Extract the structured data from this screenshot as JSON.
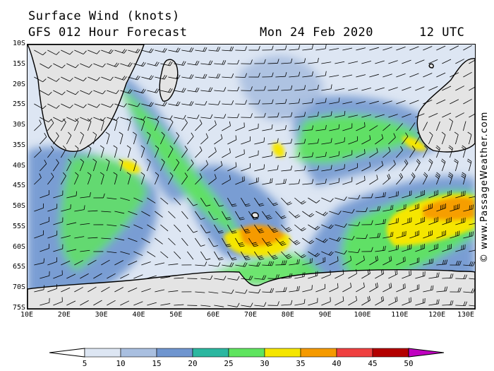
{
  "header": {
    "title": "Surface Wind (knots)",
    "model": "GFS 012 Hour Forecast",
    "date": "Mon 24 Feb 2020",
    "time": "12 UTC"
  },
  "copyright": "© www.PassageWeather.com",
  "axes": {
    "lat_labels": [
      "10S",
      "15S",
      "20S",
      "25S",
      "30S",
      "35S",
      "40S",
      "45S",
      "50S",
      "55S",
      "60S",
      "65S",
      "70S",
      "75S"
    ],
    "lon_labels": [
      "10E",
      "20E",
      "30E",
      "40E",
      "50E",
      "60E",
      "70E",
      "80E",
      "90E",
      "100E",
      "110E",
      "120E",
      "130E"
    ],
    "lat_range": [
      -10,
      -75
    ],
    "lon_range": [
      10,
      130
    ]
  },
  "colorbar": {
    "ticks": [
      "5",
      "10",
      "15",
      "20",
      "25",
      "30",
      "35",
      "40",
      "45",
      "50"
    ],
    "colors": [
      "#ffffff",
      "#dde6f3",
      "#a9bfe0",
      "#6f95cf",
      "#2bb7a0",
      "#5fe45f",
      "#f5e600",
      "#f59a00",
      "#ef4040",
      "#b30000",
      "#c000c0"
    ]
  },
  "map": {
    "land_color": "#e4e4e4",
    "ocean_color": "#dde6f3"
  }
}
